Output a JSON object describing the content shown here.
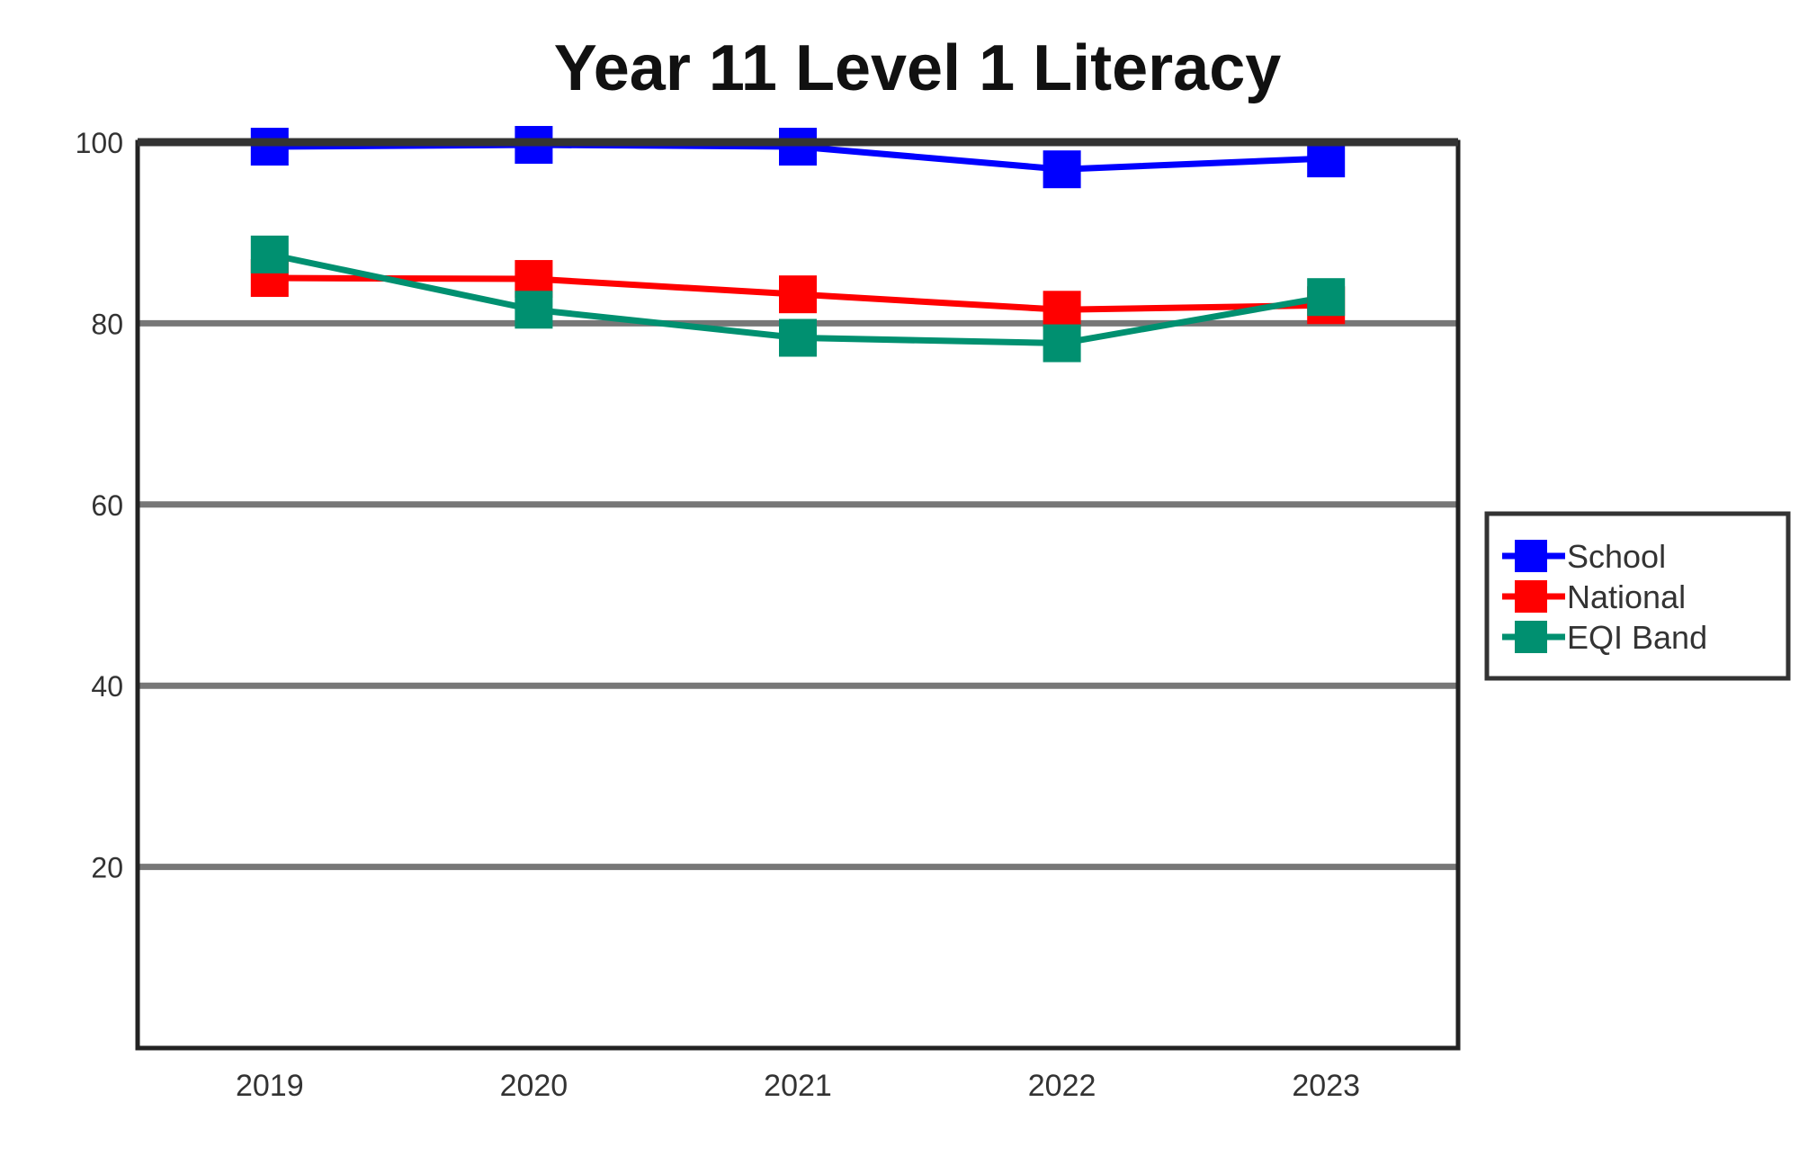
{
  "chart_data": {
    "type": "line",
    "title": "Year 11 Level 1 Literacy",
    "xlabel": "",
    "ylabel": "",
    "categories": [
      "2019",
      "2020",
      "2021",
      "2022",
      "2023"
    ],
    "ylim": [
      0,
      100
    ],
    "yticks": [
      20,
      40,
      60,
      80,
      100
    ],
    "ytick_labels": [
      "20",
      "40",
      "60",
      "80",
      "100"
    ],
    "grid": true,
    "legend_position": "right",
    "series": [
      {
        "name": "School",
        "color": "#0000ff",
        "values": [
          99.5,
          99.7,
          99.5,
          97.0,
          98.2
        ]
      },
      {
        "name": "National",
        "color": "#ff0000",
        "values": [
          85.0,
          84.9,
          83.2,
          81.5,
          82.0
        ]
      },
      {
        "name": "EQI Band",
        "color": "#009070",
        "values": [
          87.6,
          81.5,
          78.4,
          77.8,
          82.9
        ]
      }
    ]
  }
}
